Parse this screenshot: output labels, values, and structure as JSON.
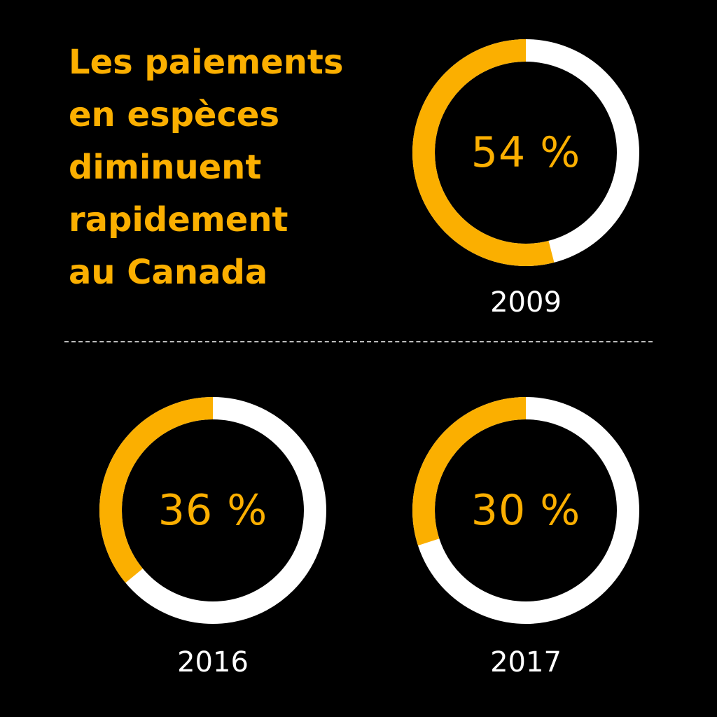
{
  "title_lines": [
    "Les paiements",
    "en espèces",
    "diminuent",
    "rapidement",
    "au Canada"
  ],
  "colors": {
    "background": "#000000",
    "accent": "#FBAF00",
    "remainder": "#FFFFFF",
    "divider": "#BDBDBD"
  },
  "chart_data": [
    {
      "type": "pie",
      "year": "2009",
      "value": 54,
      "label": "54 %"
    },
    {
      "type": "pie",
      "year": "2016",
      "value": 36,
      "label": "36 %"
    },
    {
      "type": "pie",
      "year": "2017",
      "value": 30,
      "label": "30 %"
    }
  ]
}
